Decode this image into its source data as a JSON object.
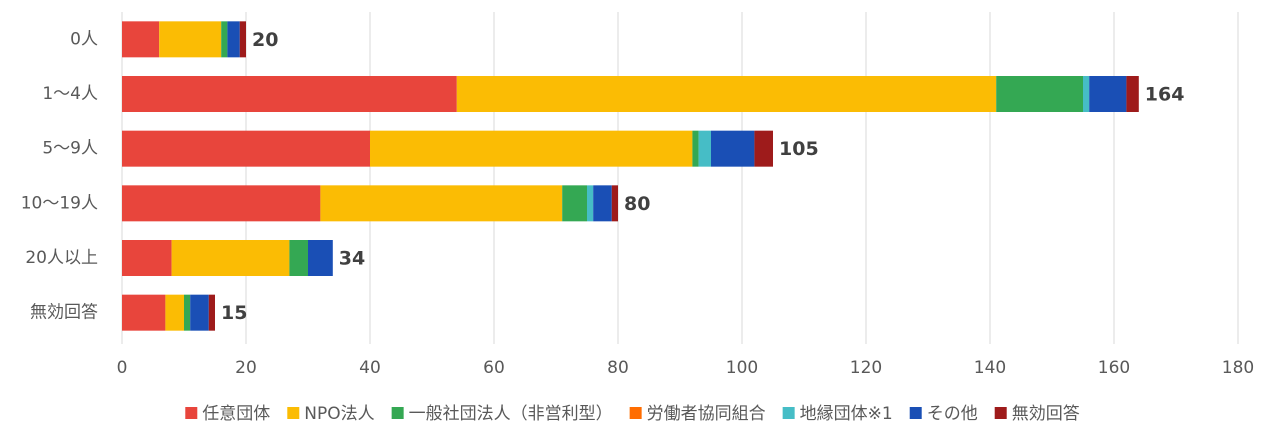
{
  "chart_data": {
    "type": "stacked-bar-horizontal",
    "categories": [
      "0人",
      "1～4人",
      "5～9人",
      "10～19人",
      "20人以上",
      "無効回答"
    ],
    "series": [
      {
        "name": "任意団体",
        "color": "#e8453c",
        "values": [
          6,
          54,
          40,
          32,
          8,
          7
        ]
      },
      {
        "name": "NPO法人",
        "color": "#fbbc04",
        "values": [
          10,
          87,
          52,
          39,
          19,
          3
        ]
      },
      {
        "name": "一般社団法人（非営利型）",
        "color": "#34a853",
        "values": [
          1,
          14,
          1,
          4,
          3,
          1
        ]
      },
      {
        "name": "労働者協同組合",
        "color": "#ff6d01",
        "values": [
          0,
          0,
          0,
          0,
          0,
          0
        ]
      },
      {
        "name": "地縁団体※1",
        "color": "#46bdc6",
        "values": [
          0,
          1,
          2,
          1,
          0,
          0
        ]
      },
      {
        "name": "その他",
        "color": "#1a4fb5",
        "values": [
          2,
          6,
          7,
          3,
          4,
          3
        ]
      },
      {
        "name": "無効回答",
        "color": "#9e1b1b",
        "values": [
          1,
          2,
          3,
          1,
          0,
          1
        ]
      }
    ],
    "totals": [
      20,
      164,
      105,
      80,
      34,
      15
    ],
    "xlim": [
      0,
      180
    ],
    "xticks": [
      0,
      20,
      40,
      60,
      80,
      100,
      120,
      140,
      160,
      180
    ],
    "grid": true,
    "legend": "bottom"
  }
}
